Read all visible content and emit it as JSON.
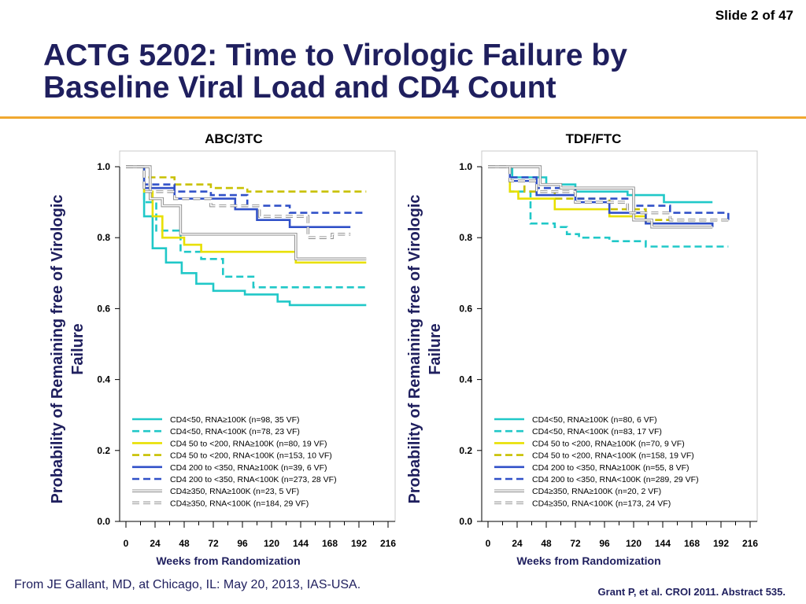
{
  "slide_label": "Slide 2 of 47",
  "title_line1": "ACTG 5202: Time to Virologic Failure by",
  "title_line2": "Baseline Viral Load and CD4 Count",
  "footer_left": "From JE Gallant, MD, at Chicago, IL: May 20, 2013, IAS-USA.",
  "footer_right": "Grant P, et al. CROI 2011. Abstract 535.",
  "colors": {
    "title": "#1f1f5e",
    "accent_rule": "#f0a830"
  },
  "chart_data": [
    {
      "type": "line",
      "title": "ABC/3TC",
      "xlabel": "Weeks from Randomization",
      "ylabel": "Probability of Remaining free of Virologic Failure",
      "xlim": [
        0,
        216
      ],
      "ylim": [
        0,
        1
      ],
      "xticks": [
        "0",
        "24",
        "48",
        "72",
        "96",
        "120",
        "144",
        "168",
        "192",
        "216"
      ],
      "yticks": [
        "0.0",
        "0.2",
        "0.4",
        "0.6",
        "0.8",
        "1.0"
      ],
      "legend_position": "bottom-left",
      "series": [
        {
          "name": "CD4<50, RNA≥100K (n=98, 35 VF)",
          "color": "#20c8c8",
          "style": "solid",
          "points": [
            [
              0,
              1.0
            ],
            [
              15,
              1.0
            ],
            [
              15,
              0.86
            ],
            [
              22,
              0.86
            ],
            [
              22,
              0.77
            ],
            [
              33,
              0.77
            ],
            [
              33,
              0.73
            ],
            [
              46,
              0.73
            ],
            [
              46,
              0.7
            ],
            [
              58,
              0.7
            ],
            [
              58,
              0.67
            ],
            [
              72,
              0.67
            ],
            [
              72,
              0.65
            ],
            [
              98,
              0.65
            ],
            [
              98,
              0.64
            ],
            [
              125,
              0.64
            ],
            [
              125,
              0.62
            ],
            [
              135,
              0.62
            ],
            [
              135,
              0.61
            ],
            [
              198,
              0.61
            ]
          ]
        },
        {
          "name": "CD4<50, RNA<100K (n=78, 23 VF)",
          "color": "#20c8c8",
          "style": "dashed",
          "points": [
            [
              0,
              1.0
            ],
            [
              15,
              1.0
            ],
            [
              15,
              0.9
            ],
            [
              25,
              0.9
            ],
            [
              25,
              0.82
            ],
            [
              45,
              0.82
            ],
            [
              45,
              0.76
            ],
            [
              62,
              0.76
            ],
            [
              62,
              0.74
            ],
            [
              80,
              0.74
            ],
            [
              80,
              0.69
            ],
            [
              105,
              0.69
            ],
            [
              105,
              0.66
            ],
            [
              198,
              0.66
            ]
          ]
        },
        {
          "name": "CD4 50 to <200, RNA≥100K (n=80, 19 VF)",
          "color": "#e8e000",
          "style": "solid",
          "points": [
            [
              0,
              1.0
            ],
            [
              15,
              1.0
            ],
            [
              15,
              0.93
            ],
            [
              22,
              0.93
            ],
            [
              22,
              0.86
            ],
            [
              30,
              0.86
            ],
            [
              30,
              0.8
            ],
            [
              48,
              0.8
            ],
            [
              48,
              0.78
            ],
            [
              62,
              0.78
            ],
            [
              62,
              0.76
            ],
            [
              140,
              0.76
            ],
            [
              140,
              0.73
            ],
            [
              198,
              0.73
            ]
          ]
        },
        {
          "name": "CD4 50 to <200, RNA<100K (n=153, 10 VF)",
          "color": "#c8c000",
          "style": "dashed",
          "points": [
            [
              0,
              1.0
            ],
            [
              15,
              1.0
            ],
            [
              15,
              0.97
            ],
            [
              40,
              0.97
            ],
            [
              40,
              0.95
            ],
            [
              70,
              0.95
            ],
            [
              70,
              0.94
            ],
            [
              100,
              0.94
            ],
            [
              100,
              0.93
            ],
            [
              198,
              0.93
            ]
          ]
        },
        {
          "name": "CD4 200 to <350, RNA≥100K (n=39, 6 VF)",
          "color": "#3050c8",
          "style": "solid",
          "points": [
            [
              0,
              1.0
            ],
            [
              15,
              1.0
            ],
            [
              15,
              0.94
            ],
            [
              40,
              0.94
            ],
            [
              40,
              0.91
            ],
            [
              90,
              0.91
            ],
            [
              90,
              0.88
            ],
            [
              108,
              0.88
            ],
            [
              108,
              0.85
            ],
            [
              135,
              0.85
            ],
            [
              135,
              0.83
            ],
            [
              185,
              0.83
            ]
          ]
        },
        {
          "name": "CD4 200 to <350, RNA<100K (n=273, 28 VF)",
          "color": "#3050c8",
          "style": "dashed",
          "points": [
            [
              0,
              1.0
            ],
            [
              15,
              1.0
            ],
            [
              15,
              0.95
            ],
            [
              40,
              0.95
            ],
            [
              40,
              0.93
            ],
            [
              70,
              0.93
            ],
            [
              70,
              0.92
            ],
            [
              100,
              0.92
            ],
            [
              100,
              0.89
            ],
            [
              135,
              0.89
            ],
            [
              135,
              0.87
            ],
            [
              198,
              0.87
            ]
          ]
        },
        {
          "name": "CD4≥350, RNA≥100K (n=23, 5 VF)",
          "color": "#9a9a9a",
          "style": "solid",
          "points": [
            [
              0,
              1.0
            ],
            [
              20,
              1.0
            ],
            [
              20,
              0.91
            ],
            [
              30,
              0.91
            ],
            [
              30,
              0.89
            ],
            [
              45,
              0.89
            ],
            [
              45,
              0.81
            ],
            [
              140,
              0.81
            ],
            [
              140,
              0.74
            ],
            [
              198,
              0.74
            ]
          ]
        },
        {
          "name": "CD4≥350, RNA<100K (n=184, 29 VF)",
          "color": "#9a9a9a",
          "style": "dashed",
          "points": [
            [
              0,
              1.0
            ],
            [
              15,
              1.0
            ],
            [
              15,
              0.93
            ],
            [
              40,
              0.93
            ],
            [
              40,
              0.91
            ],
            [
              70,
              0.91
            ],
            [
              70,
              0.89
            ],
            [
              110,
              0.89
            ],
            [
              110,
              0.86
            ],
            [
              150,
              0.86
            ],
            [
              150,
              0.8
            ],
            [
              170,
              0.8
            ],
            [
              170,
              0.81
            ],
            [
              185,
              0.81
            ]
          ]
        }
      ]
    },
    {
      "type": "line",
      "title": "TDF/FTC",
      "xlabel": "Weeks from Randomization",
      "ylabel": "Probability of Remaining free of Virologic Failure",
      "xlim": [
        0,
        216
      ],
      "ylim": [
        0,
        1
      ],
      "xticks": [
        "0",
        "24",
        "48",
        "72",
        "96",
        "120",
        "144",
        "168",
        "192",
        "216"
      ],
      "yticks": [
        "0.0",
        "0.2",
        "0.4",
        "0.6",
        "0.8",
        "1.0"
      ],
      "legend_position": "bottom-left",
      "series": [
        {
          "name": "CD4<50, RNA≥100K (n=80, 6 VF)",
          "color": "#20c8c8",
          "style": "solid",
          "points": [
            [
              0,
              1.0
            ],
            [
              20,
              1.0
            ],
            [
              20,
              0.97
            ],
            [
              48,
              0.97
            ],
            [
              48,
              0.95
            ],
            [
              72,
              0.95
            ],
            [
              72,
              0.93
            ],
            [
              115,
              0.93
            ],
            [
              115,
              0.92
            ],
            [
              145,
              0.92
            ],
            [
              145,
              0.9
            ],
            [
              185,
              0.9
            ]
          ]
        },
        {
          "name": "CD4<50, RNA<100K (n=83, 17 VF)",
          "color": "#20c8c8",
          "style": "dashed",
          "points": [
            [
              0,
              1.0
            ],
            [
              18,
              1.0
            ],
            [
              18,
              0.93
            ],
            [
              35,
              0.93
            ],
            [
              35,
              0.84
            ],
            [
              55,
              0.84
            ],
            [
              55,
              0.83
            ],
            [
              65,
              0.83
            ],
            [
              65,
              0.81
            ],
            [
              75,
              0.81
            ],
            [
              75,
              0.8
            ],
            [
              100,
              0.8
            ],
            [
              100,
              0.79
            ],
            [
              130,
              0.79
            ],
            [
              130,
              0.775
            ],
            [
              198,
              0.775
            ]
          ]
        },
        {
          "name": "CD4 50 to <200, RNA≥100K (n=70, 9 VF)",
          "color": "#e8e000",
          "style": "solid",
          "points": [
            [
              0,
              1.0
            ],
            [
              18,
              1.0
            ],
            [
              18,
              0.93
            ],
            [
              25,
              0.93
            ],
            [
              25,
              0.91
            ],
            [
              55,
              0.91
            ],
            [
              55,
              0.88
            ],
            [
              100,
              0.88
            ],
            [
              100,
              0.86
            ],
            [
              130,
              0.86
            ],
            [
              130,
              0.84
            ],
            [
              185,
              0.84
            ]
          ]
        },
        {
          "name": "CD4 50 to <200, RNA<100K (n=158, 19 VF)",
          "color": "#c8c000",
          "style": "dashed",
          "points": [
            [
              0,
              1.0
            ],
            [
              18,
              1.0
            ],
            [
              18,
              0.96
            ],
            [
              30,
              0.96
            ],
            [
              30,
              0.93
            ],
            [
              55,
              0.93
            ],
            [
              55,
              0.91
            ],
            [
              100,
              0.91
            ],
            [
              100,
              0.88
            ],
            [
              130,
              0.88
            ],
            [
              130,
              0.85
            ],
            [
              198,
              0.85
            ]
          ]
        },
        {
          "name": "CD4 200 to <350, RNA≥100K (n=55, 8 VF)",
          "color": "#3050c8",
          "style": "solid",
          "points": [
            [
              0,
              1.0
            ],
            [
              18,
              1.0
            ],
            [
              18,
              0.96
            ],
            [
              40,
              0.96
            ],
            [
              40,
              0.92
            ],
            [
              72,
              0.92
            ],
            [
              72,
              0.9
            ],
            [
              100,
              0.9
            ],
            [
              100,
              0.87
            ],
            [
              130,
              0.87
            ],
            [
              130,
              0.84
            ],
            [
              185,
              0.84
            ],
            [
              185,
              0.83
            ]
          ]
        },
        {
          "name": "CD4 200 to <350, RNA<100K (n=289, 29 VF)",
          "color": "#3050c8",
          "style": "dashed",
          "points": [
            [
              0,
              1.0
            ],
            [
              18,
              1.0
            ],
            [
              18,
              0.97
            ],
            [
              40,
              0.97
            ],
            [
              40,
              0.94
            ],
            [
              72,
              0.94
            ],
            [
              72,
              0.91
            ],
            [
              120,
              0.91
            ],
            [
              120,
              0.89
            ],
            [
              150,
              0.89
            ],
            [
              150,
              0.87
            ],
            [
              198,
              0.87
            ],
            [
              198,
              0.85
            ]
          ]
        },
        {
          "name": "CD4≥350, RNA≥100K (n=20, 2 VF)",
          "color": "#9a9a9a",
          "style": "solid",
          "points": [
            [
              0,
              1.0
            ],
            [
              43,
              1.0
            ],
            [
              43,
              0.95
            ],
            [
              60,
              0.95
            ],
            [
              60,
              0.94
            ],
            [
              120,
              0.94
            ],
            [
              120,
              0.85
            ],
            [
              135,
              0.85
            ],
            [
              135,
              0.83
            ],
            [
              185,
              0.83
            ]
          ]
        },
        {
          "name": "CD4≥350, RNA<100K (n=173, 24 VF)",
          "color": "#9a9a9a",
          "style": "dashed",
          "points": [
            [
              0,
              1.0
            ],
            [
              18,
              1.0
            ],
            [
              18,
              0.96
            ],
            [
              40,
              0.96
            ],
            [
              40,
              0.93
            ],
            [
              72,
              0.93
            ],
            [
              72,
              0.9
            ],
            [
              115,
              0.9
            ],
            [
              115,
              0.87
            ],
            [
              150,
              0.87
            ],
            [
              150,
              0.85
            ],
            [
              198,
              0.85
            ]
          ]
        }
      ]
    }
  ]
}
